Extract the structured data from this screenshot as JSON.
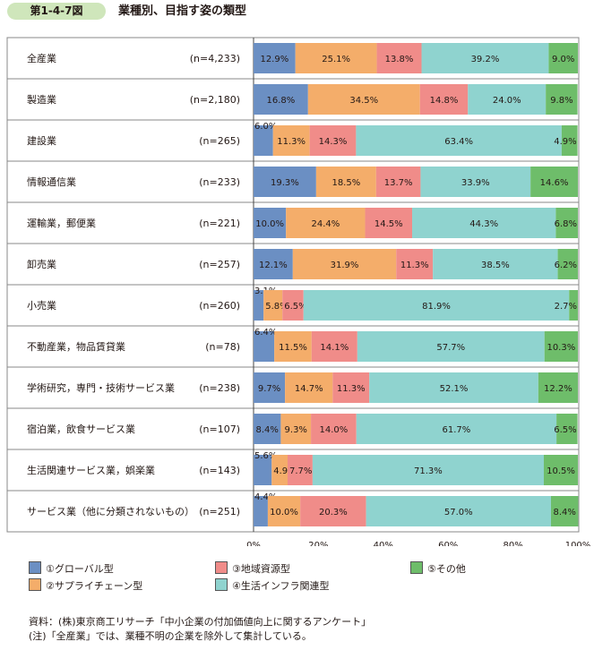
{
  "header": {
    "figure_number": "第1-4-7図",
    "title": "業種別、目指す姿の類型"
  },
  "legend": [
    {
      "label": "①グローバル型",
      "color": "#6b8fc3"
    },
    {
      "label": "②サプライチェーン型",
      "color": "#f4ad6a"
    },
    {
      "label": "③地域資源型",
      "color": "#f08c89"
    },
    {
      "label": "④生活インフラ関連型",
      "color": "#8fd3cf"
    },
    {
      "label": "⑤その他",
      "color": "#6ebd6a"
    }
  ],
  "notes": {
    "source": "資料：(株)東京商工リサーチ「中小企業の付加価値向上に関するアンケート」",
    "note": "(注)「全産業」では、業種不明の企業を除外して集計している。"
  },
  "chart_data": {
    "type": "bar",
    "orientation": "horizontal",
    "stacked": true,
    "title": "業種別、目指す姿の類型",
    "xlim": [
      0,
      100
    ],
    "x_ticks": [
      "0%",
      "20%",
      "40%",
      "60%",
      "80%",
      "100%"
    ],
    "grid": false,
    "legend_position": "bottom",
    "categories": [
      {
        "name": "全産業",
        "n": "(n=4,233)"
      },
      {
        "name": "製造業",
        "n": "(n=2,180)"
      },
      {
        "name": "建設業",
        "n": "(n=265)"
      },
      {
        "name": "情報通信業",
        "n": "(n=233)"
      },
      {
        "name": "運輸業，郵便業",
        "n": "(n=221)"
      },
      {
        "name": "卸売業",
        "n": "(n=257)"
      },
      {
        "name": "小売業",
        "n": "(n=260)"
      },
      {
        "name": "不動産業，物品賃貸業",
        "n": "(n=78)"
      },
      {
        "name": "学術研究，専門・技術サービス業",
        "n": "(n=238)"
      },
      {
        "name": "宿泊業，飲食サービス業",
        "n": "(n=107)"
      },
      {
        "name": "生活関連サービス業，娯楽業",
        "n": "(n=143)"
      },
      {
        "name": "サービス業（他に分類されないもの）",
        "n": "(n=251)"
      }
    ],
    "series": [
      {
        "name": "①グローバル型",
        "color": "#6b8fc3",
        "values": [
          12.9,
          16.8,
          6.0,
          19.3,
          10.0,
          12.1,
          3.1,
          6.4,
          9.7,
          8.4,
          5.6,
          4.4
        ]
      },
      {
        "name": "②サプライチェーン型",
        "color": "#f4ad6a",
        "values": [
          25.1,
          34.5,
          11.3,
          18.5,
          24.4,
          31.9,
          5.8,
          11.5,
          14.7,
          9.3,
          4.9,
          10.0
        ]
      },
      {
        "name": "③地域資源型",
        "color": "#f08c89",
        "values": [
          13.8,
          14.8,
          14.3,
          13.7,
          14.5,
          11.3,
          6.5,
          14.1,
          11.3,
          14.0,
          7.7,
          20.3
        ]
      },
      {
        "name": "④生活インフラ関連型",
        "color": "#8fd3cf",
        "values": [
          39.2,
          24.0,
          63.4,
          33.9,
          44.3,
          38.5,
          81.9,
          57.7,
          52.1,
          61.7,
          71.3,
          57.0
        ]
      },
      {
        "name": "⑤その他",
        "color": "#6ebd6a",
        "values": [
          9.0,
          9.8,
          4.9,
          14.6,
          6.8,
          6.2,
          2.7,
          10.3,
          12.2,
          6.5,
          10.5,
          8.4
        ]
      }
    ]
  }
}
